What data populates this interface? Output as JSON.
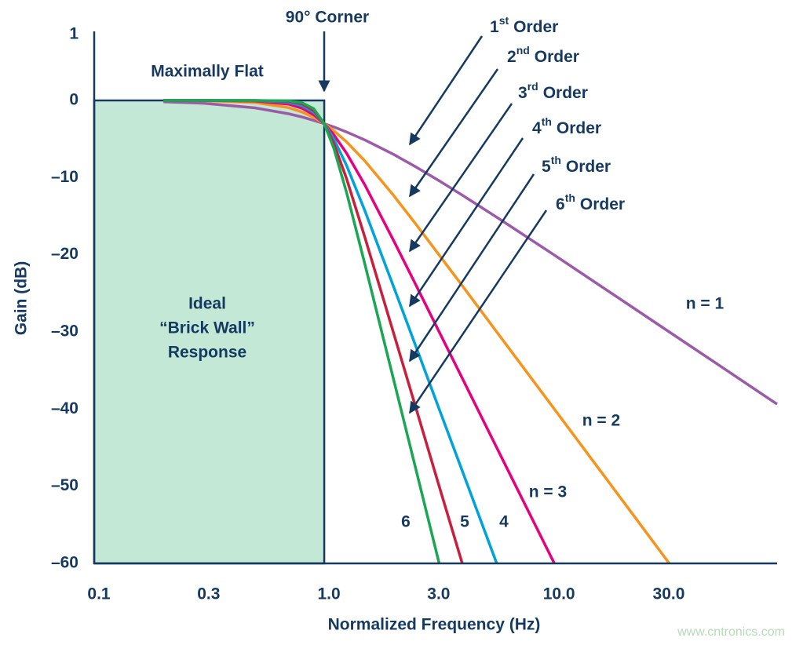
{
  "chart_data": {
    "type": "line",
    "y_label": "Gain (dB)",
    "x_label": "Normalized Frequency (Hz)",
    "log_x": true,
    "xlim": [
      0.1,
      93
    ],
    "xticks": [
      0.1,
      0.3,
      {
        "value": 1,
        "label": "1.0"
      },
      {
        "value": 3,
        "label": "3.0"
      },
      {
        "value": 10,
        "label": "10.0"
      },
      {
        "value": 30,
        "label": "30.0"
      }
    ],
    "ylim": [
      -60,
      1
    ],
    "yticks": [
      1,
      0,
      {
        "value": -10,
        "label": "–10"
      },
      {
        "value": -20,
        "label": "–20"
      },
      {
        "value": -30,
        "label": "–30"
      },
      {
        "value": -40,
        "label": "–40"
      },
      {
        "value": -50,
        "label": "–50"
      },
      {
        "value": -60,
        "label": "–60"
      }
    ],
    "brick_wall_corner": 1,
    "brick_wall_color": "#c3e8d5",
    "brick_wall_label": [
      "Ideal",
      "“Brick Wall”",
      "Response"
    ],
    "flat_label": "Maximally Flat",
    "corner_label": "90° Corner",
    "order_labels": [
      {
        "number": "1",
        "suffix": "st",
        "word": "Order"
      },
      {
        "number": "2",
        "suffix": "nd",
        "word": "Order"
      },
      {
        "number": "3",
        "suffix": "rd",
        "word": "Order"
      },
      {
        "number": "4",
        "suffix": "th",
        "word": "Order"
      },
      {
        "number": "5",
        "suffix": "th",
        "word": "Order"
      },
      {
        "number": "6",
        "suffix": "th",
        "word": "Order"
      }
    ],
    "x": [
      0.2,
      0.3,
      0.5,
      0.7,
      0.8,
      0.9,
      1,
      1.1,
      1.25,
      1.5,
      2,
      2.5,
      3.16,
      3.98,
      5.62,
      10,
      20,
      31.6,
      50,
      93
    ],
    "series": [
      {
        "name": "n = 1",
        "color": "#9b5ba8",
        "values": [
          -0.17,
          -0.37,
          -0.97,
          -1.73,
          -2.15,
          -2.58,
          -3.01,
          -3.44,
          -4.09,
          -5.12,
          -6.99,
          -8.6,
          -10.41,
          -12.27,
          -15.13,
          -20.04,
          -26.03,
          -30.0,
          -33.98,
          -39.37
        ]
      },
      {
        "name": "n = 2",
        "color": "#f7941d",
        "values": [
          -0.01,
          -0.04,
          -0.26,
          -0.94,
          -1.49,
          -2.19,
          -3.01,
          -3.92,
          -5.37,
          -7.83,
          -12.3,
          -16.03,
          -20.04,
          -24.01,
          -30.0,
          -40.0,
          -52.04,
          -60.0,
          null,
          null
        ]
      },
      {
        "name": "n = 3",
        "color": "#e6007e",
        "values": [
          0,
          0,
          -0.07,
          -0.48,
          -1.01,
          -1.85,
          -3.01,
          -4.43,
          -6.83,
          -10.93,
          -18.13,
          -23.89,
          -30.0,
          -36.0,
          -45.0,
          -60.0,
          null,
          null,
          null,
          null
        ]
      },
      {
        "name": "4",
        "color": "#00a3d9",
        "values": [
          0,
          0,
          -0.02,
          -0.24,
          -0.67,
          -1.55,
          -3.01,
          -4.97,
          -8.43,
          -14.26,
          -24.1,
          -31.84,
          -40.0,
          -48.0,
          -60.0,
          null,
          null,
          null,
          null,
          null
        ]
      },
      {
        "name": "5",
        "color": "#c8203c",
        "values": [
          0,
          0,
          0,
          -0.12,
          -0.44,
          -1.3,
          -3.01,
          -5.56,
          -10.13,
          -17.69,
          -30.11,
          -39.79,
          -50.0,
          -60.0,
          null,
          null,
          null,
          null,
          null,
          null
        ]
      },
      {
        "name": "6",
        "color": "#1aa652",
        "values": [
          0,
          0,
          0,
          -0.06,
          -0.29,
          -1.08,
          -3.01,
          -6.17,
          -11.92,
          -21.16,
          -36.12,
          -47.75,
          -60.0,
          null,
          null,
          null,
          null,
          null,
          null,
          null
        ]
      }
    ]
  },
  "watermark": "www.cntronics.com"
}
